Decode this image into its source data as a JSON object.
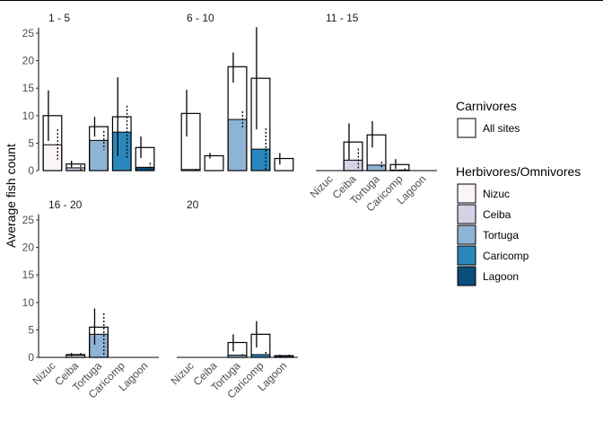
{
  "chart_data": {
    "type": "bar",
    "ylabel": "Average fish count",
    "xlabel": "",
    "ylim": [
      0,
      26
    ],
    "yticks": [
      0,
      5,
      10,
      15,
      20,
      25
    ],
    "categories": [
      "Nizuc",
      "Ceiba",
      "Tortuga",
      "Caricomp",
      "Lagoon"
    ],
    "colors": {
      "Nizuc": "#FBF4F9",
      "Ceiba": "#D3D3E7",
      "Tortuga": "#8FB3D4",
      "Caricomp": "#2B88BE",
      "Lagoon": "#0A4C7A",
      "Carnivores": "#FFFFFF"
    },
    "legend": {
      "placement": "right",
      "carnivores_title": "Carnivores",
      "carnivores_label": "All sites",
      "herbivores_title": "Herbivores/Omnivores",
      "herbivores_labels": [
        "Nizuc",
        "Ceiba",
        "Tortuga",
        "Caricomp",
        "Lagoon"
      ]
    },
    "panels": [
      {
        "title": "1 - 5",
        "carnivores": [
          10.0,
          1.2,
          8.0,
          9.8,
          4.2
        ],
        "carnivores_err": [
          [
            5.4,
            14.6
          ],
          [
            0.6,
            1.8
          ],
          [
            6.2,
            9.8
          ],
          [
            2.6,
            17.0
          ],
          [
            2.3,
            6.2
          ]
        ],
        "herbivores": [
          4.7,
          0.5,
          5.5,
          7.0,
          0.6
        ],
        "herbivores_err": [
          [
            2.0,
            7.5
          ],
          [
            0.0,
            1.0
          ],
          [
            3.8,
            7.2
          ],
          [
            2.0,
            11.8
          ],
          [
            0.0,
            1.4
          ]
        ]
      },
      {
        "title": "6 - 10",
        "carnivores": [
          10.4,
          2.7,
          18.9,
          16.8,
          2.2
        ],
        "carnivores_err": [
          [
            6.2,
            14.7
          ],
          [
            2.2,
            3.2
          ],
          [
            16.0,
            21.5
          ],
          [
            7.5,
            26.1
          ],
          [
            1.1,
            3.2
          ]
        ],
        "herbivores": [
          0.2,
          0.0,
          9.3,
          3.9,
          0.0
        ],
        "herbivores_err": [
          [
            0.0,
            0.3
          ],
          [
            0.0,
            0.0
          ],
          [
            7.7,
            10.8
          ],
          [
            0.0,
            7.7
          ],
          [
            0.0,
            0.0
          ]
        ]
      },
      {
        "title": "11 - 15",
        "carnivores": [
          0.0,
          5.2,
          6.5,
          1.1,
          0.0
        ],
        "carnivores_err": [
          [
            0,
            0
          ],
          [
            1.9,
            8.6
          ],
          [
            4.2,
            9.0
          ],
          [
            0.3,
            2.1
          ],
          [
            0,
            0
          ]
        ],
        "herbivores": [
          0.0,
          1.9,
          1.0,
          0.1,
          0.0
        ],
        "herbivores_err": [
          [
            0,
            0
          ],
          [
            0.0,
            4.0
          ],
          [
            0.5,
            1.6
          ],
          [
            0.0,
            0.4
          ],
          [
            0,
            0
          ]
        ]
      },
      {
        "title": "16 - 20",
        "carnivores": [
          0.0,
          0.5,
          5.5,
          0.0,
          0.0
        ],
        "carnivores_err": [
          [
            0,
            0
          ],
          [
            0.2,
            0.8
          ],
          [
            2.3,
            8.9
          ],
          [
            0,
            0
          ],
          [
            0,
            0
          ]
        ],
        "herbivores": [
          0.0,
          0.4,
          4.2,
          0.0,
          0.0
        ],
        "herbivores_err": [
          [
            0,
            0
          ],
          [
            0.2,
            0.8
          ],
          [
            0.5,
            8.0
          ],
          [
            0,
            0
          ],
          [
            0,
            0
          ]
        ]
      },
      {
        "title": "20",
        "carnivores": [
          0.0,
          0.0,
          2.7,
          4.2,
          0.3
        ],
        "carnivores_err": [
          [
            0,
            0
          ],
          [
            0,
            0
          ],
          [
            1.1,
            4.2
          ],
          [
            1.8,
            6.6
          ],
          [
            0.1,
            0.5
          ]
        ],
        "herbivores": [
          0.0,
          0.0,
          0.4,
          0.5,
          0.3
        ],
        "herbivores_err": [
          [
            0,
            0
          ],
          [
            0,
            0
          ],
          [
            0.3,
            0.6
          ],
          [
            0.4,
            1.0
          ],
          [
            0.1,
            0.5
          ]
        ]
      }
    ]
  }
}
